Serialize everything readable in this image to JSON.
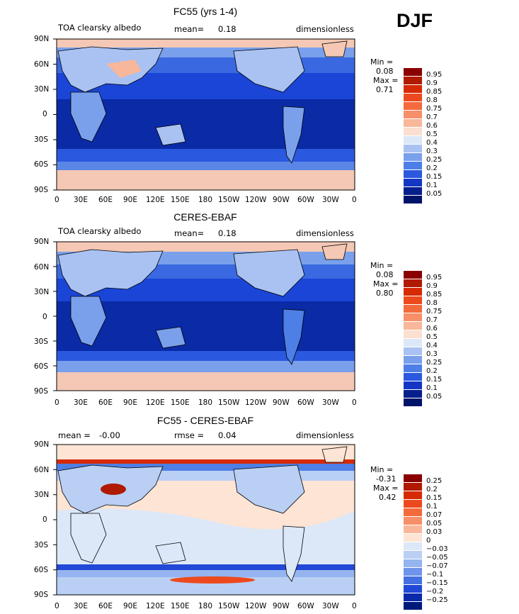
{
  "season": "DJF",
  "panels": [
    {
      "title": "FC55 (yrs 1-4)",
      "left_label": "TOA clearsky albedo",
      "mid_label": "mean=",
      "mid_value": "0.18",
      "right_label": "dimensionless",
      "min_label": "Min =",
      "min_value": "0.08",
      "max_label": "Max =",
      "max_value": "0.71"
    },
    {
      "title": "CERES-EBAF",
      "left_label": "TOA clearsky albedo",
      "mid_label": "mean=",
      "mid_value": "0.18",
      "right_label": "dimensionless",
      "min_label": "Min =",
      "min_value": "0.08",
      "max_label": "Max =",
      "max_value": "0.80"
    },
    {
      "title": "FC55 - CERES-EBAF",
      "left_label": "mean =",
      "left_value": "-0.00",
      "mid_label": "rmse =",
      "mid_value": "0.04",
      "right_label": "dimensionless",
      "min_label": "Min =",
      "min_value": "-0.31",
      "max_label": "Max =",
      "max_value": "0.42"
    }
  ],
  "lat_ticks": [
    "90N",
    "60N",
    "30N",
    "0",
    "30S",
    "60S",
    "90S"
  ],
  "lon_ticks": [
    "0",
    "30E",
    "60E",
    "90E",
    "120E",
    "150E",
    "180",
    "150W",
    "120W",
    "90W",
    "60W",
    "30W",
    "0"
  ],
  "albedo_levels": [
    "0.95",
    "0.9",
    "0.85",
    "0.8",
    "0.75",
    "0.7",
    "0.6",
    "0.5",
    "0.4",
    "0.3",
    "0.25",
    "0.2",
    "0.15",
    "0.1",
    "0.05"
  ],
  "albedo_colors": [
    "#8b0000",
    "#b01a00",
    "#d62a05",
    "#ec4a1e",
    "#f46a3c",
    "#f78f68",
    "#f8b79a",
    "#fbdfd0",
    "#dce8f8",
    "#a9c2f2",
    "#7aa0ec",
    "#4d7fe6",
    "#2a58de",
    "#1337c4",
    "#071f8c",
    "#00136a"
  ],
  "diff_levels": [
    "0.25",
    "0.2",
    "0.15",
    "0.1",
    "0.07",
    "0.05",
    "0.03",
    "0",
    "−0.03",
    "−0.05",
    "−0.07",
    "−0.1",
    "−0.15",
    "−0.2",
    "−0.25"
  ],
  "diff_colors": [
    "#8b0000",
    "#b01a00",
    "#d62a05",
    "#ec4a1e",
    "#f46a3c",
    "#f78f68",
    "#f8b79a",
    "#fde4d4",
    "#dce8f8",
    "#b9cff4",
    "#96b4ef",
    "#6f93ea",
    "#4470e2",
    "#2148d6",
    "#0a2aaa",
    "#001a7a"
  ]
}
